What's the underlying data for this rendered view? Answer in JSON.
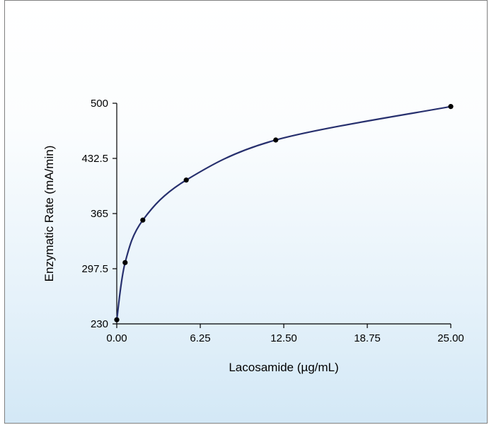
{
  "chart_data": {
    "type": "scatter",
    "title": "",
    "xlabel": "Lacosamide (µg/mL)",
    "ylabel": "Enzymatic Rate (mA/min)",
    "xlim": [
      0,
      25
    ],
    "ylim": [
      230,
      500
    ],
    "x_ticks": [
      0,
      6.25,
      12.5,
      18.75,
      25
    ],
    "x_tick_labels": [
      "0.00",
      "6.25",
      "12.50",
      "18.75",
      "25.00"
    ],
    "y_ticks": [
      230,
      297.5,
      365,
      432.5,
      500
    ],
    "y_tick_labels": [
      "230",
      "297.5",
      "365",
      "432.5",
      "500"
    ],
    "grid": false,
    "legend": "none",
    "series": [
      {
        "x": [
          0,
          0.625,
          1.95,
          5.2,
          11.9,
          25
        ],
        "y": [
          235,
          305,
          357,
          406,
          455,
          496
        ],
        "marker": "circle",
        "line": "smooth"
      }
    ],
    "colors": {
      "curve": "#27306e",
      "marker": "#000000",
      "axis": "#000000"
    }
  }
}
